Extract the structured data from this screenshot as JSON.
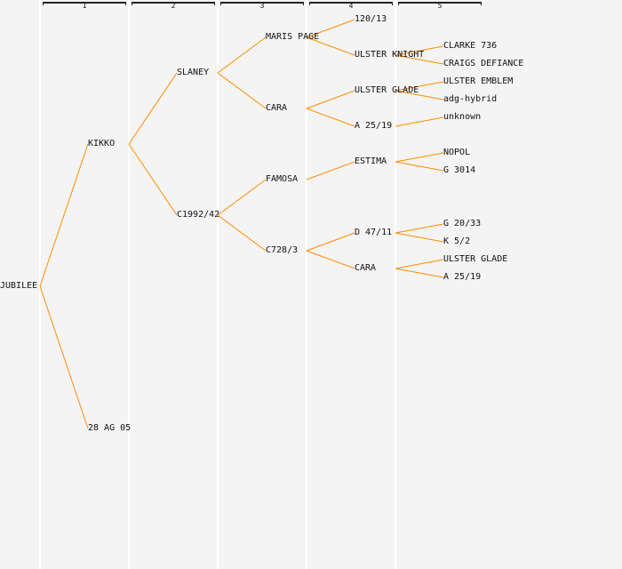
{
  "generations": [
    "1",
    "2",
    "3",
    "4",
    "5"
  ],
  "line_color": "#ff8c00",
  "tree": {
    "label": "JUBILEE",
    "children": [
      {
        "label": "KIKKO",
        "children": [
          {
            "label": "SLANEY",
            "children": [
              {
                "label": "MARIS PAGE",
                "children": [
                  {
                    "label": "120/13"
                  },
                  {
                    "label": "ULSTER KNIGHT",
                    "children": [
                      {
                        "label": "CLARKE 736"
                      },
                      {
                        "label": "CRAIGS DEFIANCE"
                      }
                    ]
                  }
                ]
              },
              {
                "label": "CARA",
                "children": [
                  {
                    "label": "ULSTER GLADE",
                    "children": [
                      {
                        "label": "ULSTER EMBLEM"
                      },
                      {
                        "label": "adg-hybrid"
                      }
                    ]
                  },
                  {
                    "label": "A 25/19",
                    "children": [
                      {
                        "label": "unknown"
                      }
                    ]
                  }
                ]
              }
            ]
          },
          {
            "label": "C1992/42",
            "children": [
              {
                "label": "FAMOSA",
                "children": [
                  {
                    "label": "ESTIMA",
                    "children": [
                      {
                        "label": "NOPOL"
                      },
                      {
                        "label": "G 3014"
                      }
                    ]
                  }
                ]
              },
              {
                "label": "C728/3",
                "children": [
                  {
                    "label": "D 47/11",
                    "children": [
                      {
                        "label": "G 20/33"
                      },
                      {
                        "label": "K 5/2"
                      }
                    ]
                  },
                  {
                    "label": "CARA",
                    "children": [
                      {
                        "label": "ULSTER GLADE"
                      },
                      {
                        "label": "A 25/19"
                      }
                    ]
                  }
                ]
              }
            ]
          }
        ]
      },
      {
        "label": "28 AG 05"
      }
    ]
  }
}
